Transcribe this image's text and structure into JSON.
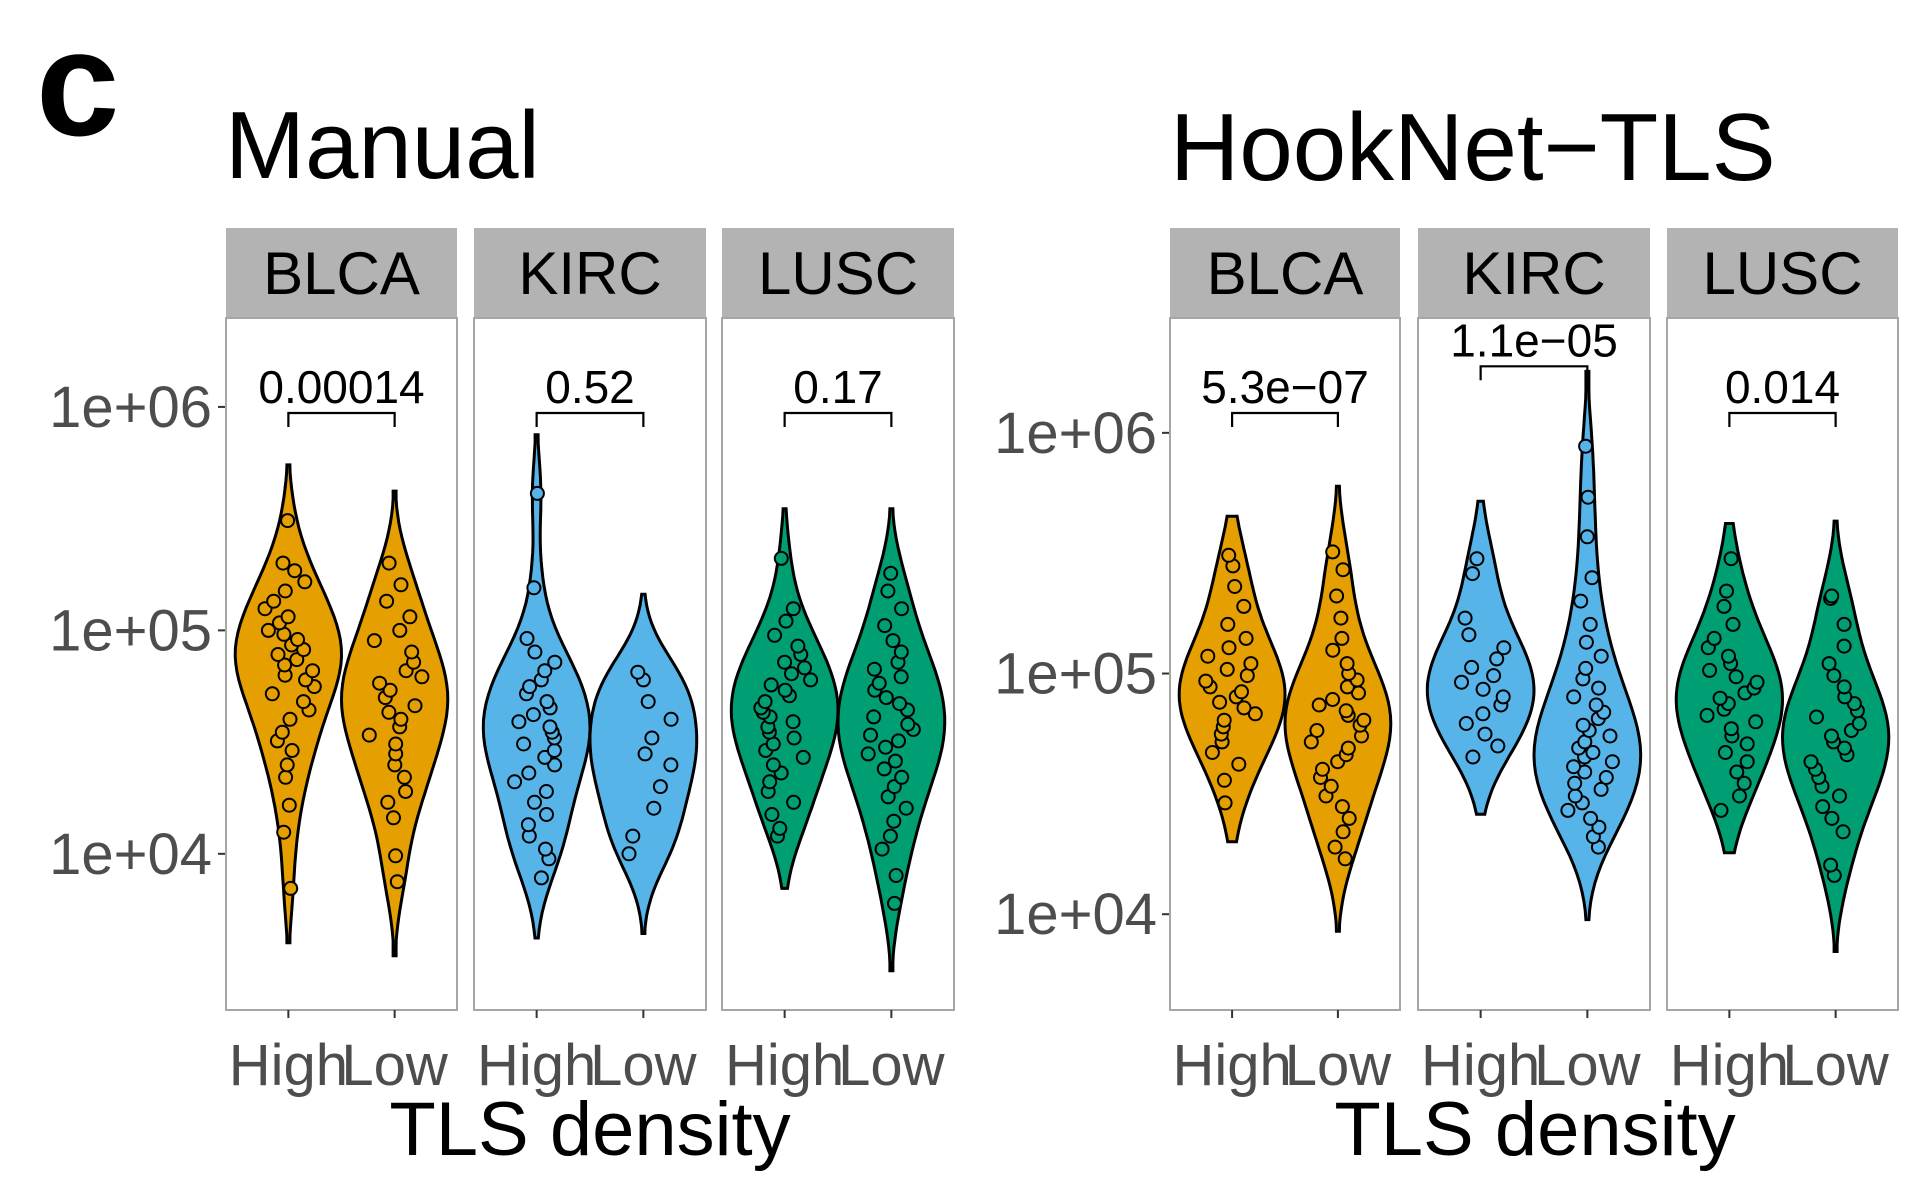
{
  "panel_label": "c",
  "chart_data": [
    {
      "type": "violin",
      "title": "Manual",
      "xlabel": "TLS density",
      "ylabel": "",
      "yscale": "log10",
      "ylim": [
        2000,
        2500000
      ],
      "yticks": [
        {
          "value": 10000,
          "label": "1e+04"
        },
        {
          "value": 100000,
          "label": "1e+05"
        },
        {
          "value": 1000000,
          "label": "1e+06"
        }
      ],
      "categories": [
        "High",
        "Low"
      ],
      "facets": [
        {
          "name": "BLCA",
          "color": "#E69F00",
          "p_value": "0.00014",
          "groups": [
            {
              "category": "High",
              "min": 4000,
              "max": 550000,
              "median": 70000,
              "points": [
                7000,
                12500,
                16500,
                22000,
                25000,
                29000,
                32000,
                35000,
                40000,
                44000,
                48000,
                52000,
                56000,
                60000,
                63000,
                66000,
                70000,
                74000,
                78000,
                82000,
                86000,
                91000,
                96000,
                100000,
                108000,
                115000,
                125000,
                135000,
                150000,
                165000,
                185000,
                200000,
                310000
              ]
            },
            {
              "category": "Low",
              "min": 3500,
              "max": 420000,
              "median": 45000,
              "points": [
                7500,
                9800,
                14500,
                17000,
                19000,
                22000,
                25000,
                28000,
                31000,
                34000,
                37000,
                40000,
                43000,
                46000,
                50000,
                54000,
                58000,
                62000,
                66000,
                72000,
                80000,
                90000,
                100000,
                115000,
                135000,
                160000,
                200000
              ]
            }
          ]
        },
        {
          "name": "KIRC",
          "color": "#56B4E9",
          "p_value": "0.52",
          "groups": [
            {
              "category": "High",
              "min": 4200,
              "max": 750000,
              "median": 32000,
              "points": [
                7800,
                9500,
                10500,
                12000,
                13500,
                15000,
                17000,
                19000,
                21000,
                23000,
                25000,
                27000,
                29000,
                31000,
                33000,
                35000,
                37000,
                39000,
                42000,
                45000,
                48000,
                52000,
                56000,
                60000,
                66000,
                72000,
                80000,
                92000,
                155000,
                410000
              ]
            },
            {
              "category": "Low",
              "min": 4400,
              "max": 145000,
              "median": 28000,
              "points": [
                10000,
                12000,
                16000,
                20000,
                25000,
                28000,
                33000,
                40000,
                48000,
                60000,
                65000
              ]
            }
          ]
        },
        {
          "name": "LUSC",
          "color": "#009E73",
          "p_value": "0.17",
          "groups": [
            {
              "category": "High",
              "min": 7000,
              "max": 350000,
              "median": 40000,
              "points": [
                12000,
                13000,
                15000,
                17000,
                19000,
                21000,
                23000,
                25000,
                27000,
                29000,
                31000,
                33000,
                35000,
                37000,
                39000,
                41000,
                43000,
                45000,
                48000,
                51000,
                54000,
                57000,
                60000,
                64000,
                68000,
                72000,
                78000,
                85000,
                95000,
                110000,
                125000,
                210000
              ]
            },
            {
              "category": "Low",
              "min": 3000,
              "max": 350000,
              "median": 38000,
              "points": [
                6000,
                8000,
                10500,
                12000,
                14000,
                16000,
                18000,
                20000,
                22000,
                24000,
                26000,
                28000,
                30000,
                32000,
                34000,
                36000,
                38000,
                41000,
                44000,
                47000,
                50000,
                54000,
                58000,
                62000,
                67000,
                72000,
                80000,
                90000,
                105000,
                125000,
                150000,
                180000
              ]
            }
          ]
        }
      ]
    },
    {
      "type": "violin",
      "title": "HookNet−TLS",
      "xlabel": "TLS density",
      "ylabel": "",
      "yscale": "log10",
      "ylim": [
        4000,
        3000000
      ],
      "yticks": [
        {
          "value": 10000,
          "label": "1e+04"
        },
        {
          "value": 100000,
          "label": "1e+05"
        },
        {
          "value": 1000000,
          "label": "1e+06"
        }
      ],
      "categories": [
        "High",
        "Low"
      ],
      "facets": [
        {
          "name": "BLCA",
          "color": "#E69F00",
          "p_value": "5.3e−07",
          "groups": [
            {
              "category": "High",
              "min": 20000,
              "max": 450000,
              "median": 85000,
              "points": [
                29000,
                36000,
                42000,
                47000,
                52000,
                56000,
                60000,
                64000,
                68000,
                72000,
                76000,
                80000,
                84000,
                88000,
                93000,
                98000,
                104000,
                110000,
                118000,
                128000,
                140000,
                160000,
                190000,
                230000,
                280000,
                310000
              ]
            },
            {
              "category": "Low",
              "min": 8500,
              "max": 600000,
              "median": 65000,
              "points": [
                17000,
                19000,
                22000,
                25000,
                28000,
                31000,
                34000,
                37000,
                40000,
                43000,
                46000,
                49000,
                52000,
                55000,
                58000,
                61000,
                64000,
                67000,
                70000,
                74000,
                78000,
                83000,
                88000,
                94000,
                100000,
                110000,
                125000,
                140000,
                170000,
                210000,
                270000,
                320000
              ]
            }
          ]
        },
        {
          "name": "KIRC",
          "color": "#56B4E9",
          "p_value": "1.1e−05",
          "groups": [
            {
              "category": "High",
              "min": 26000,
              "max": 520000,
              "median": 90000,
              "points": [
                45000,
                50000,
                56000,
                62000,
                68000,
                74000,
                80000,
                86000,
                92000,
                98000,
                106000,
                115000,
                128000,
                145000,
                170000,
                260000,
                300000
              ]
            },
            {
              "category": "Low",
              "min": 9500,
              "max": 1800000,
              "median": 50000,
              "points": [
                19000,
                21000,
                23000,
                25000,
                27000,
                29000,
                31000,
                33000,
                35000,
                37000,
                39000,
                41000,
                43000,
                45000,
                47000,
                49000,
                52000,
                55000,
                58000,
                61000,
                65000,
                69000,
                74000,
                80000,
                87000,
                95000,
                105000,
                118000,
                135000,
                160000,
                200000,
                250000,
                370000,
                540000,
                880000
              ]
            }
          ]
        },
        {
          "name": "LUSC",
          "color": "#009E73",
          "p_value": "0.014",
          "groups": [
            {
              "category": "High",
              "min": 18000,
              "max": 420000,
              "median": 75000,
              "points": [
                27000,
                31000,
                35000,
                39000,
                43000,
                47000,
                51000,
                55000,
                59000,
                63000,
                67000,
                71000,
                75000,
                79000,
                83000,
                87000,
                92000,
                97000,
                103000,
                110000,
                118000,
                128000,
                140000,
                160000,
                190000,
                220000,
                300000
              ]
            },
            {
              "category": "Low",
              "min": 7000,
              "max": 430000,
              "median": 60000,
              "points": [
                14500,
                16000,
                22000,
                25000,
                28000,
                31000,
                34000,
                37000,
                40000,
                43000,
                46000,
                49000,
                52000,
                55000,
                58000,
                62000,
                66000,
                70000,
                75000,
                80000,
                88000,
                98000,
                110000,
                130000,
                160000,
                205000,
                210000
              ]
            }
          ]
        }
      ]
    }
  ]
}
